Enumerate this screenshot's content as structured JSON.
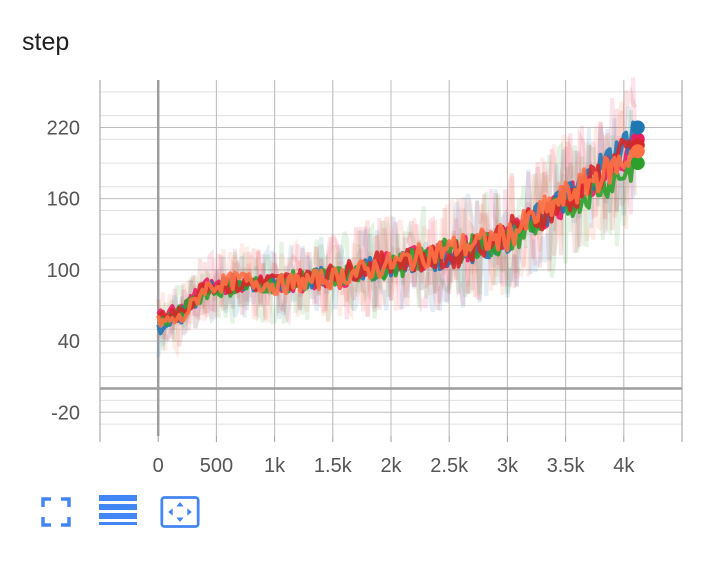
{
  "card": {
    "title": "step"
  },
  "toolbar": {
    "buttons": [
      {
        "name": "fullscreen-icon",
        "color": "#4285f4"
      },
      {
        "name": "list-icon",
        "color": "#4285f4"
      },
      {
        "name": "fit-domain-icon",
        "color": "#4285f4"
      }
    ]
  },
  "chart_data": {
    "type": "line",
    "title": "step",
    "xlim": [
      -500,
      4500
    ],
    "ylim": [
      -40,
      260
    ],
    "x_ticks": [
      0,
      500,
      1000,
      1500,
      2000,
      2500,
      3000,
      3500,
      4000
    ],
    "x_tick_labels": [
      "0",
      "500",
      "1k",
      "1.5k",
      "2k",
      "2.5k",
      "3k",
      "3.5k",
      "4k"
    ],
    "y_ticks": [
      -20,
      40,
      100,
      160,
      220
    ],
    "y_tick_labels": [
      "-20",
      "40",
      "100",
      "160",
      "220"
    ],
    "grid": true,
    "series": [
      {
        "color": "#e91e63",
        "end_y": 210,
        "points": [
          [
            0,
            60
          ],
          [
            200,
            66
          ],
          [
            400,
            86
          ],
          [
            700,
            88
          ],
          [
            1000,
            88
          ],
          [
            1500,
            92
          ],
          [
            2000,
            106
          ],
          [
            2500,
            114
          ],
          [
            3000,
            130
          ],
          [
            3500,
            158
          ],
          [
            4000,
            195
          ],
          [
            4100,
            210
          ]
        ]
      },
      {
        "color": "#1f77b4",
        "end_y": 220,
        "points": [
          [
            0,
            50
          ],
          [
            200,
            60
          ],
          [
            400,
            84
          ],
          [
            700,
            90
          ],
          [
            1000,
            86
          ],
          [
            1500,
            95
          ],
          [
            2000,
            104
          ],
          [
            2500,
            112
          ],
          [
            3000,
            126
          ],
          [
            3500,
            160
          ],
          [
            4000,
            205
          ],
          [
            4100,
            220
          ]
        ]
      },
      {
        "color": "#2ca02c",
        "end_y": 190,
        "points": [
          [
            0,
            55
          ],
          [
            200,
            64
          ],
          [
            400,
            82
          ],
          [
            700,
            86
          ],
          [
            1000,
            89
          ],
          [
            1500,
            94
          ],
          [
            2000,
            102
          ],
          [
            2500,
            116
          ],
          [
            3000,
            124
          ],
          [
            3500,
            154
          ],
          [
            4000,
            182
          ],
          [
            4100,
            190
          ]
        ]
      },
      {
        "color": "#d62728",
        "end_y": 205,
        "points": [
          [
            0,
            62
          ],
          [
            200,
            62
          ],
          [
            400,
            88
          ],
          [
            700,
            87
          ],
          [
            1000,
            90
          ],
          [
            1500,
            96
          ],
          [
            2000,
            108
          ],
          [
            2500,
            110
          ],
          [
            3000,
            132
          ],
          [
            3500,
            156
          ],
          [
            4000,
            198
          ],
          [
            4100,
            205
          ]
        ]
      },
      {
        "color": "#ff7043",
        "end_y": 200,
        "points": [
          [
            0,
            56
          ],
          [
            200,
            58
          ],
          [
            400,
            85
          ],
          [
            700,
            92
          ],
          [
            1000,
            87
          ],
          [
            1500,
            93
          ],
          [
            2000,
            105
          ],
          [
            2500,
            118
          ],
          [
            3000,
            128
          ],
          [
            3500,
            162
          ],
          [
            4000,
            192
          ],
          [
            4100,
            200
          ]
        ]
      }
    ]
  }
}
